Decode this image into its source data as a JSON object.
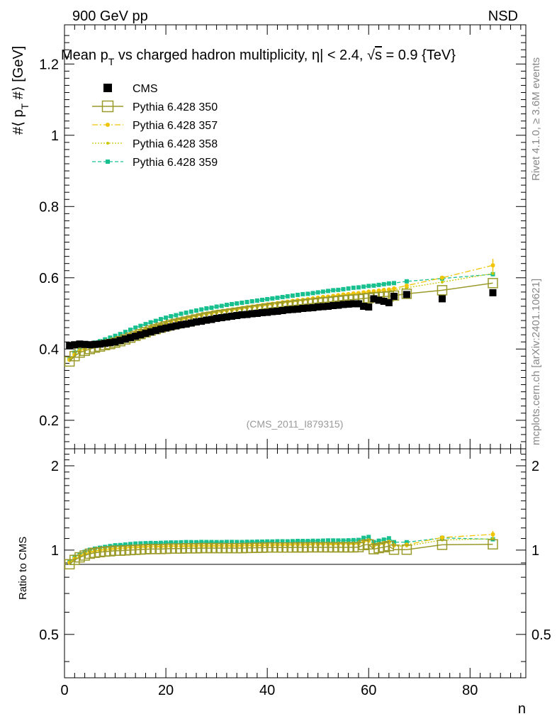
{
  "header": {
    "left": "900 GeV pp",
    "right": "NSD"
  },
  "side_labels": {
    "rivet": "Rivet 4.1.0, ≥ 3.6M events",
    "mcplots": "mcplots.cern.ch [arXiv:2401.10621]"
  },
  "chart_data": {
    "type": "scatter",
    "title": "Mean p_T vs charged hadron multiplicity, |η| < 2.4, √s = 0.9 {TeV}",
    "title_parts": {
      "pre": "Mean p",
      "sub": "T",
      "mid": " vs charged hadron multiplicity, ",
      "eta": "η",
      "post_eta": "| < 2.4, ",
      "sqrt": "√",
      "s": "s",
      "post": " = 0.9 {TeV}"
    },
    "ylabel": "#⟨ p_T #⟩ [GeV]",
    "ylabel_parts": {
      "pre": "#⟨ p",
      "sub": "T",
      "post": " #⟩ [GeV]"
    },
    "xlabel": "n",
    "ratio_ylabel": "Ratio to CMS",
    "watermark": "(CMS_2011_I879315)",
    "xlim": [
      0,
      91
    ],
    "ylim": [
      0.12,
      1.31
    ],
    "ratio_ylim": [
      0.35,
      2.3
    ],
    "xticks": [
      0,
      20,
      40,
      60,
      80
    ],
    "yticks": [
      0.2,
      0.4,
      0.6,
      0.8,
      1,
      1.2
    ],
    "ratio_yticks": [
      0.5,
      1,
      2
    ],
    "legend": [
      {
        "label": "CMS",
        "color": "#000000"
      },
      {
        "label": "Pythia 6.428 350",
        "color": "#9a9a2a"
      },
      {
        "label": "Pythia 6.428 357",
        "color": "#f0c400"
      },
      {
        "label": "Pythia 6.428 358",
        "color": "#c8c800"
      },
      {
        "label": "Pythia 6.428 359",
        "color": "#18c090"
      }
    ],
    "series": [
      {
        "name": "CMS",
        "x": [
          1,
          2,
          3,
          4,
          5,
          6,
          7,
          8,
          9,
          10,
          11,
          12,
          13,
          14,
          15,
          16,
          17,
          18,
          19,
          20,
          21,
          22,
          23,
          24,
          25,
          26,
          27,
          28,
          29,
          30,
          31,
          32,
          33,
          34,
          35,
          36,
          37,
          38,
          39,
          40,
          41,
          42,
          43,
          44,
          45,
          46,
          47,
          48,
          49,
          50,
          51,
          52,
          53,
          54,
          55,
          56,
          57,
          58,
          59,
          60,
          61,
          62,
          63,
          64,
          65,
          67.5,
          74.5,
          84.5
        ],
        "y": [
          0.41,
          0.412,
          0.414,
          0.413,
          0.412,
          0.413,
          0.414,
          0.416,
          0.418,
          0.42,
          0.424,
          0.428,
          0.432,
          0.436,
          0.44,
          0.444,
          0.448,
          0.452,
          0.456,
          0.459,
          0.462,
          0.465,
          0.468,
          0.47,
          0.473,
          0.476,
          0.478,
          0.481,
          0.483,
          0.486,
          0.488,
          0.49,
          0.492,
          0.494,
          0.496,
          0.497,
          0.499,
          0.5,
          0.502,
          0.503,
          0.505,
          0.506,
          0.508,
          0.51,
          0.511,
          0.512,
          0.514,
          0.515,
          0.516,
          0.518,
          0.519,
          0.52,
          0.522,
          0.523,
          0.525,
          0.526,
          0.527,
          0.527,
          0.52,
          0.518,
          0.541,
          0.537,
          0.534,
          0.53,
          0.548,
          0.553,
          0.541,
          0.558
        ],
        "color": "#000000"
      },
      {
        "name": "Pythia 6.428 350",
        "x": [
          1,
          2,
          3,
          4,
          5,
          6,
          7,
          8,
          9,
          10,
          11,
          12,
          13,
          14,
          15,
          16,
          17,
          18,
          19,
          20,
          21,
          22,
          23,
          24,
          25,
          26,
          27,
          28,
          29,
          30,
          31,
          32,
          33,
          34,
          35,
          36,
          37,
          38,
          39,
          40,
          41,
          42,
          43,
          44,
          45,
          46,
          47,
          48,
          49,
          50,
          51,
          52,
          53,
          54,
          55,
          56,
          57,
          58,
          59,
          60,
          61,
          62,
          63,
          64,
          65,
          67.5,
          74.5,
          84.5
        ],
        "y": [
          0.365,
          0.38,
          0.39,
          0.395,
          0.4,
          0.404,
          0.407,
          0.411,
          0.414,
          0.418,
          0.422,
          0.427,
          0.432,
          0.437,
          0.442,
          0.447,
          0.452,
          0.456,
          0.46,
          0.464,
          0.468,
          0.471,
          0.474,
          0.477,
          0.48,
          0.483,
          0.486,
          0.489,
          0.491,
          0.494,
          0.496,
          0.498,
          0.5,
          0.502,
          0.504,
          0.506,
          0.508,
          0.51,
          0.512,
          0.514,
          0.516,
          0.517,
          0.519,
          0.521,
          0.522,
          0.524,
          0.525,
          0.527,
          0.528,
          0.53,
          0.531,
          0.532,
          0.534,
          0.535,
          0.537,
          0.538,
          0.539,
          0.54,
          0.542,
          0.543,
          0.545,
          0.546,
          0.547,
          0.548,
          0.55,
          0.555,
          0.565,
          0.585
        ],
        "color": "#9a9a2a"
      },
      {
        "name": "Pythia 6.428 357",
        "x": [
          1,
          2,
          3,
          4,
          5,
          6,
          7,
          8,
          9,
          10,
          11,
          12,
          13,
          14,
          15,
          16,
          17,
          18,
          19,
          20,
          21,
          22,
          23,
          24,
          25,
          26,
          27,
          28,
          29,
          30,
          31,
          32,
          33,
          34,
          35,
          36,
          37,
          38,
          39,
          40,
          41,
          42,
          43,
          44,
          45,
          46,
          47,
          48,
          49,
          50,
          51,
          52,
          53,
          54,
          55,
          56,
          57,
          58,
          59,
          60,
          61,
          62,
          63,
          64,
          65,
          67.5,
          74.5,
          84.5
        ],
        "y": [
          0.37,
          0.385,
          0.395,
          0.401,
          0.406,
          0.41,
          0.414,
          0.418,
          0.422,
          0.426,
          0.431,
          0.436,
          0.442,
          0.447,
          0.452,
          0.457,
          0.462,
          0.466,
          0.47,
          0.474,
          0.478,
          0.481,
          0.484,
          0.487,
          0.49,
          0.493,
          0.496,
          0.499,
          0.501,
          0.504,
          0.506,
          0.508,
          0.51,
          0.512,
          0.515,
          0.517,
          0.519,
          0.521,
          0.523,
          0.525,
          0.527,
          0.529,
          0.531,
          0.533,
          0.535,
          0.537,
          0.538,
          0.54,
          0.542,
          0.544,
          0.546,
          0.547,
          0.549,
          0.551,
          0.553,
          0.554,
          0.556,
          0.557,
          0.559,
          0.561,
          0.562,
          0.564,
          0.566,
          0.567,
          0.57,
          0.578,
          0.6,
          0.635
        ],
        "color": "#f0c400"
      },
      {
        "name": "Pythia 6.428 358",
        "x": [
          1,
          2,
          3,
          4,
          5,
          6,
          7,
          8,
          9,
          10,
          11,
          12,
          13,
          14,
          15,
          16,
          17,
          18,
          19,
          20,
          21,
          22,
          23,
          24,
          25,
          26,
          27,
          28,
          29,
          30,
          31,
          32,
          33,
          34,
          35,
          36,
          37,
          38,
          39,
          40,
          41,
          42,
          43,
          44,
          45,
          46,
          47,
          48,
          49,
          50,
          51,
          52,
          53,
          54,
          55,
          56,
          57,
          58,
          59,
          60,
          61,
          62,
          63,
          64,
          65,
          67.5,
          74.5,
          84.5
        ],
        "y": [
          0.368,
          0.383,
          0.393,
          0.399,
          0.404,
          0.408,
          0.412,
          0.416,
          0.42,
          0.424,
          0.429,
          0.434,
          0.44,
          0.445,
          0.45,
          0.455,
          0.46,
          0.464,
          0.468,
          0.472,
          0.476,
          0.479,
          0.482,
          0.485,
          0.488,
          0.491,
          0.494,
          0.497,
          0.5,
          0.502,
          0.505,
          0.507,
          0.509,
          0.511,
          0.513,
          0.515,
          0.517,
          0.519,
          0.521,
          0.523,
          0.525,
          0.527,
          0.529,
          0.531,
          0.533,
          0.534,
          0.536,
          0.538,
          0.54,
          0.541,
          0.543,
          0.545,
          0.546,
          0.548,
          0.55,
          0.551,
          0.553,
          0.554,
          0.556,
          0.557,
          0.559,
          0.56,
          0.562,
          0.563,
          0.566,
          0.572,
          0.588,
          0.612
        ],
        "color": "#c8c800"
      },
      {
        "name": "Pythia 6.428 359",
        "x": [
          1,
          2,
          3,
          4,
          5,
          6,
          7,
          8,
          9,
          10,
          11,
          12,
          13,
          14,
          15,
          16,
          17,
          18,
          19,
          20,
          21,
          22,
          23,
          24,
          25,
          26,
          27,
          28,
          29,
          30,
          31,
          32,
          33,
          34,
          35,
          36,
          37,
          38,
          39,
          40,
          41,
          42,
          43,
          44,
          45,
          46,
          47,
          48,
          49,
          50,
          51,
          52,
          53,
          54,
          55,
          56,
          57,
          58,
          59,
          60,
          61,
          62,
          63,
          64,
          65,
          67.5,
          74.5,
          84.5
        ],
        "y": [
          0.372,
          0.39,
          0.4,
          0.407,
          0.413,
          0.418,
          0.422,
          0.427,
          0.432,
          0.437,
          0.442,
          0.448,
          0.454,
          0.46,
          0.465,
          0.47,
          0.475,
          0.479,
          0.484,
          0.488,
          0.492,
          0.495,
          0.499,
          0.502,
          0.505,
          0.508,
          0.511,
          0.514,
          0.516,
          0.519,
          0.521,
          0.524,
          0.526,
          0.528,
          0.53,
          0.532,
          0.534,
          0.536,
          0.538,
          0.54,
          0.542,
          0.544,
          0.546,
          0.548,
          0.55,
          0.552,
          0.554,
          0.555,
          0.557,
          0.559,
          0.561,
          0.563,
          0.565,
          0.566,
          0.568,
          0.57,
          0.572,
          0.573,
          0.575,
          0.577,
          0.578,
          0.58,
          0.582,
          0.584,
          0.585,
          0.59,
          0.598,
          0.61
        ],
        "color": "#18c090"
      }
    ]
  }
}
